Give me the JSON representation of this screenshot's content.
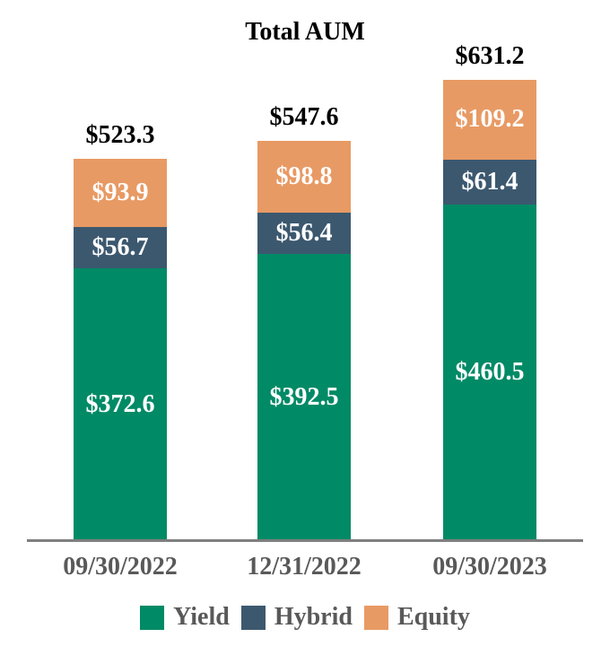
{
  "chart_data": {
    "type": "bar",
    "stacked": true,
    "title": "Total AUM",
    "categories": [
      "09/30/2022",
      "12/31/2022",
      "09/30/2023"
    ],
    "series": [
      {
        "name": "Yield",
        "color": "#008A66",
        "values": [
          372.6,
          392.5,
          460.5
        ]
      },
      {
        "name": "Hybrid",
        "color": "#3C586F",
        "values": [
          56.7,
          56.4,
          61.4
        ]
      },
      {
        "name": "Equity",
        "color": "#E89A64",
        "values": [
          93.9,
          98.8,
          109.2
        ]
      }
    ],
    "totals": [
      523.3,
      547.6,
      631.2
    ],
    "value_prefix": "$",
    "ylim": [
      0,
      660
    ],
    "grid": false,
    "legend_position": "bottom",
    "colors": {
      "total_label": "#000000",
      "segment_label": "#FFFFFF",
      "axis_line": "#7F7F7F",
      "axis_label": "#595959",
      "legend_label": "#595959"
    }
  }
}
